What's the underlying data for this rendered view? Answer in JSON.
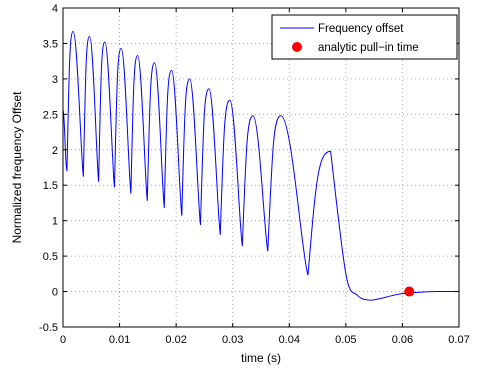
{
  "chart_data": {
    "type": "line",
    "title": "",
    "xlabel": "time (s)",
    "ylabel": "Normalized frequency Offset",
    "xlim": [
      0,
      0.07
    ],
    "ylim": [
      -0.5,
      4
    ],
    "grid": true,
    "legend_position": "top-right",
    "x_ticks": [
      0,
      0.01,
      0.02,
      0.03,
      0.04,
      0.05,
      0.06,
      0.07
    ],
    "x_tick_labels": [
      "0",
      "0.01",
      "0.02",
      "0.03",
      "0.04",
      "0.05",
      "0.06",
      "0.07"
    ],
    "y_ticks": [
      -0.5,
      0,
      0.5,
      1,
      1.5,
      2,
      2.5,
      3,
      3.5,
      4
    ],
    "y_tick_labels": [
      "-0.5",
      "0",
      "0.5",
      "1",
      "1.5",
      "2",
      "2.5",
      "3",
      "3.5",
      "4"
    ],
    "series": [
      {
        "name": "Frequency offset",
        "style": "line",
        "color": "#0000ff",
        "peaks": [
          {
            "x": 0.0018,
            "y": 3.67
          },
          {
            "x": 0.0047,
            "y": 3.6
          },
          {
            "x": 0.0074,
            "y": 3.52
          },
          {
            "x": 0.0103,
            "y": 3.43
          },
          {
            "x": 0.0132,
            "y": 3.33
          },
          {
            "x": 0.0162,
            "y": 3.23
          },
          {
            "x": 0.0192,
            "y": 3.12
          },
          {
            "x": 0.0224,
            "y": 3.0
          },
          {
            "x": 0.0258,
            "y": 2.86
          },
          {
            "x": 0.0295,
            "y": 2.7
          },
          {
            "x": 0.0336,
            "y": 2.48
          },
          {
            "x": 0.0385,
            "y": 2.48
          },
          {
            "x": 0.0473,
            "y": 1.98
          }
        ],
        "troughs": [
          {
            "x": 0.0,
            "y": 2.57
          },
          {
            "x": 0.0007,
            "y": 1.7
          },
          {
            "x": 0.0036,
            "y": 1.62
          },
          {
            "x": 0.0063,
            "y": 1.55
          },
          {
            "x": 0.0091,
            "y": 1.47
          },
          {
            "x": 0.012,
            "y": 1.38
          },
          {
            "x": 0.0149,
            "y": 1.28
          },
          {
            "x": 0.0179,
            "y": 1.18
          },
          {
            "x": 0.021,
            "y": 1.07
          },
          {
            "x": 0.0243,
            "y": 0.94
          },
          {
            "x": 0.0278,
            "y": 0.8
          },
          {
            "x": 0.0317,
            "y": 0.64
          },
          {
            "x": 0.0362,
            "y": 0.57
          },
          {
            "x": 0.0433,
            "y": 0.23
          }
        ],
        "tail": [
          {
            "x": 0.0473,
            "y": 1.98
          },
          {
            "x": 0.05,
            "y": 0.25
          },
          {
            "x": 0.052,
            "y": -0.05
          },
          {
            "x": 0.054,
            "y": -0.12
          },
          {
            "x": 0.056,
            "y": -0.1
          },
          {
            "x": 0.058,
            "y": -0.06
          },
          {
            "x": 0.06,
            "y": -0.03
          },
          {
            "x": 0.063,
            "y": -0.01
          },
          {
            "x": 0.066,
            "y": 0.0
          },
          {
            "x": 0.07,
            "y": 0.0
          }
        ]
      },
      {
        "name": "analytic pull−in time",
        "style": "marker",
        "color": "#ff0000",
        "points": [
          {
            "x": 0.0612,
            "y": 0.0
          }
        ]
      }
    ]
  }
}
